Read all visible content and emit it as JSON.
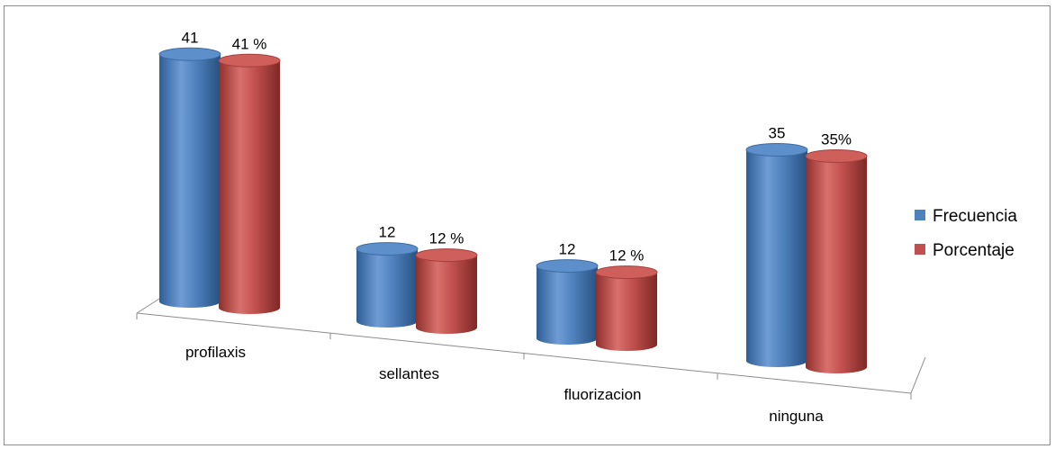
{
  "chart_data": {
    "type": "bar",
    "categories": [
      "profilaxis",
      "sellantes",
      "fluorizacion",
      "ninguna"
    ],
    "series": [
      {
        "name": "Frecuencia",
        "values": [
          41,
          12,
          12,
          35
        ],
        "labels": [
          "41",
          "12",
          "12",
          "35"
        ],
        "color": "#4f81bd"
      },
      {
        "name": "Porcentaje",
        "values": [
          41,
          12,
          12,
          35
        ],
        "labels": [
          "41 %",
          "12 %",
          "12 %",
          "35%"
        ],
        "color": "#c0504d"
      }
    ],
    "title": "",
    "xlabel": "",
    "ylabel": "",
    "ylim": [
      0,
      45
    ],
    "grid": false,
    "legend": "right"
  }
}
